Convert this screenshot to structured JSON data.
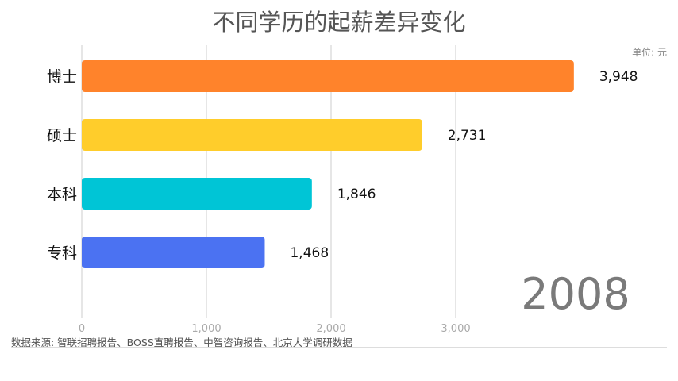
{
  "title": "不同学历的起薪差异变化",
  "unit_label": "单位: 元",
  "year": "2008",
  "source": "数据来源: 智联招聘报告、BOSS直聘报告、中智咨询报告、北京大学调研数据",
  "chart_data": {
    "type": "bar",
    "orientation": "horizontal",
    "title": "不同学历的起薪差异变化",
    "categories": [
      "博士",
      "硕士",
      "本科",
      "专科"
    ],
    "values": [
      3948,
      2731,
      1846,
      1468
    ],
    "value_labels": [
      "3,948",
      "2,731",
      "1,846",
      "1,468"
    ],
    "colors": [
      "#ff832b",
      "#ffcd2b",
      "#00c5d6",
      "#4b72f2"
    ],
    "xticks": [
      0,
      1000,
      2000,
      3000
    ],
    "xtick_labels": [
      "0",
      "1,000",
      "2,000",
      "3,000"
    ],
    "xlim": [
      0,
      4000
    ],
    "grid": true,
    "unit": "单位: 元"
  }
}
